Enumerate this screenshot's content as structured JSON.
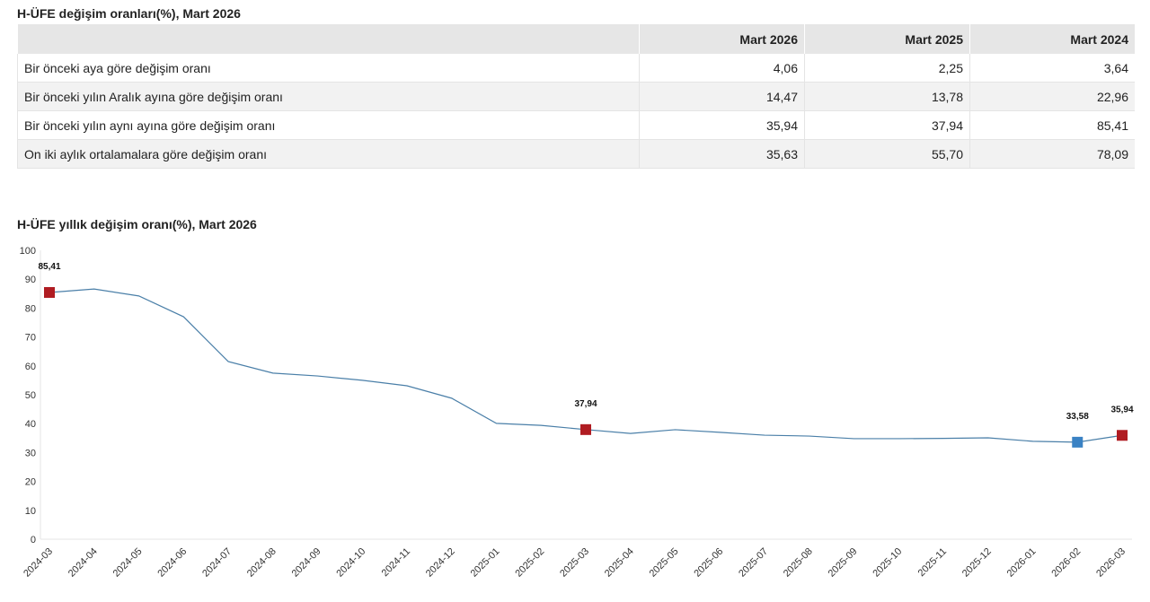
{
  "table": {
    "title": "H-ÜFE değişim oranları(%), Mart 2026",
    "columns": [
      "Mart 2026",
      "Mart 2025",
      "Mart 2024"
    ],
    "rows": [
      {
        "label": "Bir önceki aya göre değişim oranı",
        "values": [
          "4,06",
          "2,25",
          "3,64"
        ]
      },
      {
        "label": "Bir önceki yılın Aralık ayına göre değişim oranı",
        "values": [
          "14,47",
          "13,78",
          "22,96"
        ]
      },
      {
        "label": "Bir önceki yılın aynı ayına göre değişim oranı",
        "values": [
          "35,94",
          "37,94",
          "85,41"
        ]
      },
      {
        "label": "On iki aylık ortalamalara göre değişim oranı",
        "values": [
          "35,63",
          "55,70",
          "78,09"
        ]
      }
    ]
  },
  "chart_data": {
    "type": "line",
    "title": "H-ÜFE yıllık değişim oranı(%), Mart 2026",
    "x": [
      "2024-03",
      "2024-04",
      "2024-05",
      "2024-06",
      "2024-07",
      "2024-08",
      "2024-09",
      "2024-10",
      "2024-11",
      "2024-12",
      "2025-01",
      "2025-02",
      "2025-03",
      "2025-04",
      "2025-05",
      "2025-06",
      "2025-07",
      "2025-08",
      "2025-09",
      "2025-10",
      "2025-11",
      "2025-12",
      "2026-01",
      "2026-02",
      "2026-03"
    ],
    "values": [
      85.41,
      86.6,
      84.2,
      77.0,
      61.5,
      57.5,
      56.5,
      55.0,
      53.1,
      48.8,
      40.1,
      39.4,
      37.94,
      36.6,
      37.9,
      37.0,
      36.0,
      35.7,
      34.8,
      34.8,
      34.9,
      35.1,
      33.9,
      33.58,
      35.94
    ],
    "yticks": [
      0,
      10,
      20,
      30,
      40,
      50,
      60,
      70,
      80,
      90,
      100
    ],
    "ylim": [
      0,
      100
    ],
    "line_color": "#4a7fa8",
    "markers": [
      {
        "index": 0,
        "label": "85,41",
        "color": "#b01c22"
      },
      {
        "index": 12,
        "label": "37,94",
        "color": "#b01c22"
      },
      {
        "index": 23,
        "label": "33,58",
        "color": "#3a82c4"
      },
      {
        "index": 24,
        "label": "35,94",
        "color": "#b01c22"
      }
    ]
  }
}
